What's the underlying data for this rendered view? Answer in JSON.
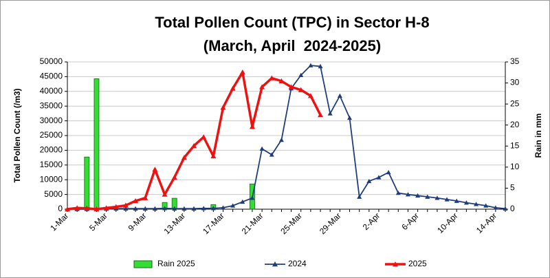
{
  "chart_data": {
    "type": "line",
    "title": "Total Pollen Count (TPC) in Sector H-8",
    "subtitle": "(March, April  2024-2025)",
    "y_label": "Total Pollen Count (/m3)",
    "y2_label": "Rain in mm",
    "categories": [
      "1-Mar",
      null,
      null,
      null,
      "5-Mar",
      null,
      null,
      null,
      "9-Mar",
      null,
      null,
      null,
      "13-Mar",
      null,
      null,
      null,
      "17-Mar",
      null,
      null,
      null,
      "21-Mar",
      null,
      null,
      null,
      "25-Mar",
      null,
      null,
      null,
      "29-Mar",
      null,
      null,
      null,
      "2-Apr",
      null,
      null,
      null,
      "6-Apr",
      null,
      null,
      null,
      "10-Apr",
      null,
      null,
      null,
      "14-Apr",
      null
    ],
    "series": [
      {
        "name": "Rain 2025",
        "type": "bar",
        "axis": "y2",
        "color": "#33dd33",
        "values": [
          null,
          null,
          12.4,
          31,
          null,
          null,
          null,
          null,
          null,
          null,
          1.6,
          2.6,
          null,
          null,
          null,
          1.1,
          null,
          null,
          null,
          6,
          null,
          null,
          null,
          null,
          null,
          null,
          null,
          null,
          null,
          null,
          null,
          null,
          null,
          null,
          null,
          null,
          null,
          null,
          null,
          null,
          null,
          null,
          null,
          null,
          null,
          null
        ]
      },
      {
        "name": "2024",
        "type": "line",
        "color": "#1f3d7a",
        "values": [
          0,
          0,
          0,
          0,
          100,
          200,
          200,
          200,
          200,
          200,
          300,
          200,
          200,
          200,
          300,
          300,
          500,
          1200,
          2500,
          3800,
          20500,
          18500,
          23500,
          41000,
          45500,
          48800,
          48500,
          32500,
          38500,
          31000,
          4200,
          9500,
          10800,
          12500,
          5500,
          5000,
          4600,
          4200,
          3800,
          3300,
          2800,
          2200,
          1700,
          1200,
          500,
          200
        ]
      },
      {
        "name": "2025",
        "type": "line",
        "color": "#ee1111",
        "values": [
          0,
          400,
          300,
          0,
          400,
          800,
          1300,
          2800,
          3800,
          13500,
          5000,
          10800,
          17500,
          21500,
          24500,
          18000,
          34500,
          41000,
          46500,
          28000,
          41500,
          44500,
          43500,
          41500,
          40500,
          38500,
          32000,
          null,
          null,
          null,
          null,
          null,
          null,
          null,
          null,
          null,
          null,
          null,
          null,
          null,
          null,
          null,
          null,
          null,
          null,
          null
        ]
      }
    ],
    "ylim": [
      0,
      50000
    ],
    "yticks": [
      0,
      5000,
      10000,
      15000,
      20000,
      25000,
      30000,
      35000,
      40000,
      45000,
      50000
    ],
    "y2lim": [
      0,
      35
    ],
    "y2ticks": [
      0,
      5,
      10,
      15,
      20,
      25,
      30,
      35
    ],
    "grid": true,
    "legend": "bottom"
  }
}
